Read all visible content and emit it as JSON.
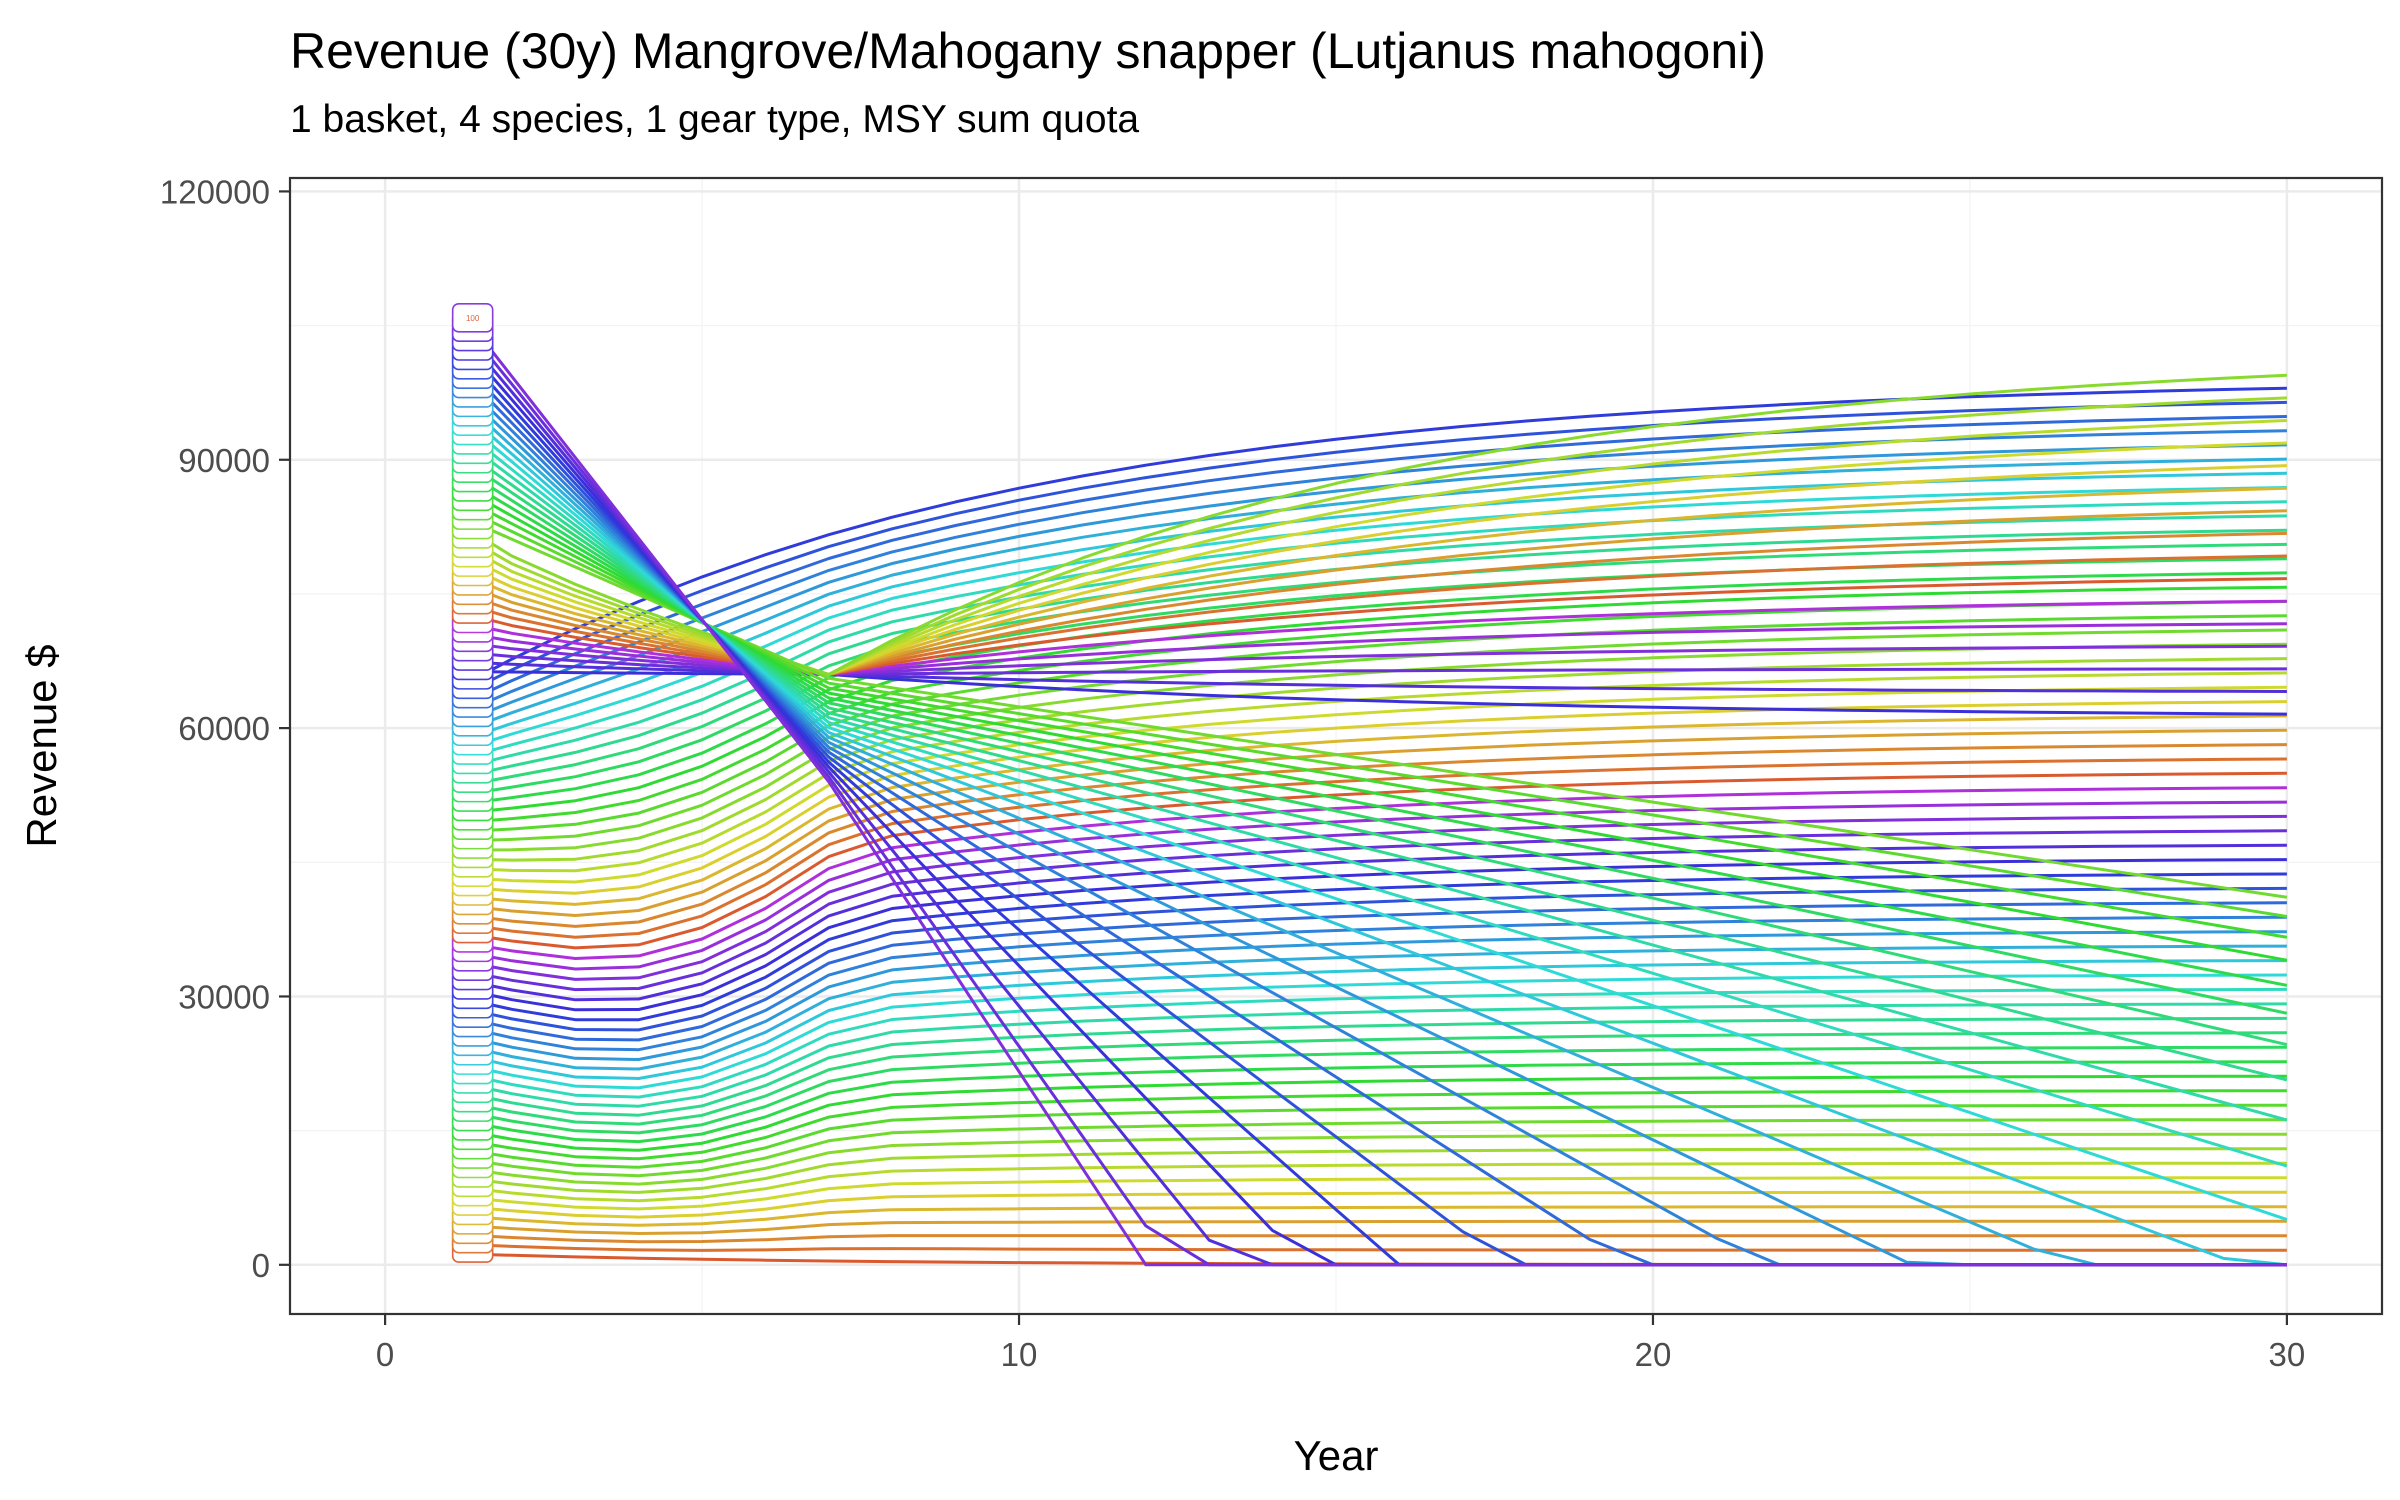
{
  "title": "Revenue (30y) Mangrove/Mahogany snapper (Lutjanus mahogoni)",
  "subtitle": "1 basket, 4 species, 1 gear type, MSY sum quota",
  "chart_data": {
    "type": "line",
    "title": "Revenue (30y) Mangrove/Mahogany snapper (Lutjanus mahogoni)",
    "subtitle": "1 basket, 4 species, 1 gear type, MSY sum quota",
    "xlabel": "Year",
    "ylabel": "Revenue $",
    "xlim": [
      -1.5,
      31.5
    ],
    "ylim": [
      -5500,
      121500
    ],
    "x_ticks": [
      0,
      10,
      20,
      30
    ],
    "y_ticks": [
      0,
      30000,
      60000,
      90000,
      120000
    ],
    "x_tick_labels": [
      "0",
      "10",
      "20",
      "30"
    ],
    "y_tick_labels": [
      "0",
      "30000",
      "60000",
      "90000",
      "120000"
    ],
    "grid": true,
    "legend": "none",
    "series_count": 100,
    "visible_series_label": "100",
    "series_x": [
      1.35,
      2,
      3,
      4,
      5,
      6,
      7,
      8,
      9,
      10,
      11,
      12,
      13,
      14,
      15,
      16,
      17,
      18,
      19,
      20,
      21,
      22,
      23,
      24,
      25,
      26,
      27,
      28,
      29,
      30
    ],
    "representative_series": [
      {
        "start": 1000,
        "end": 1000
      },
      {
        "start": 15000,
        "end": 30000
      },
      {
        "start": 40000,
        "end": 85000
      },
      {
        "start": 60000,
        "end": 100000
      },
      {
        "start": 85000,
        "end": 58000
      },
      {
        "start": 105000,
        "end": 0
      }
    ]
  }
}
